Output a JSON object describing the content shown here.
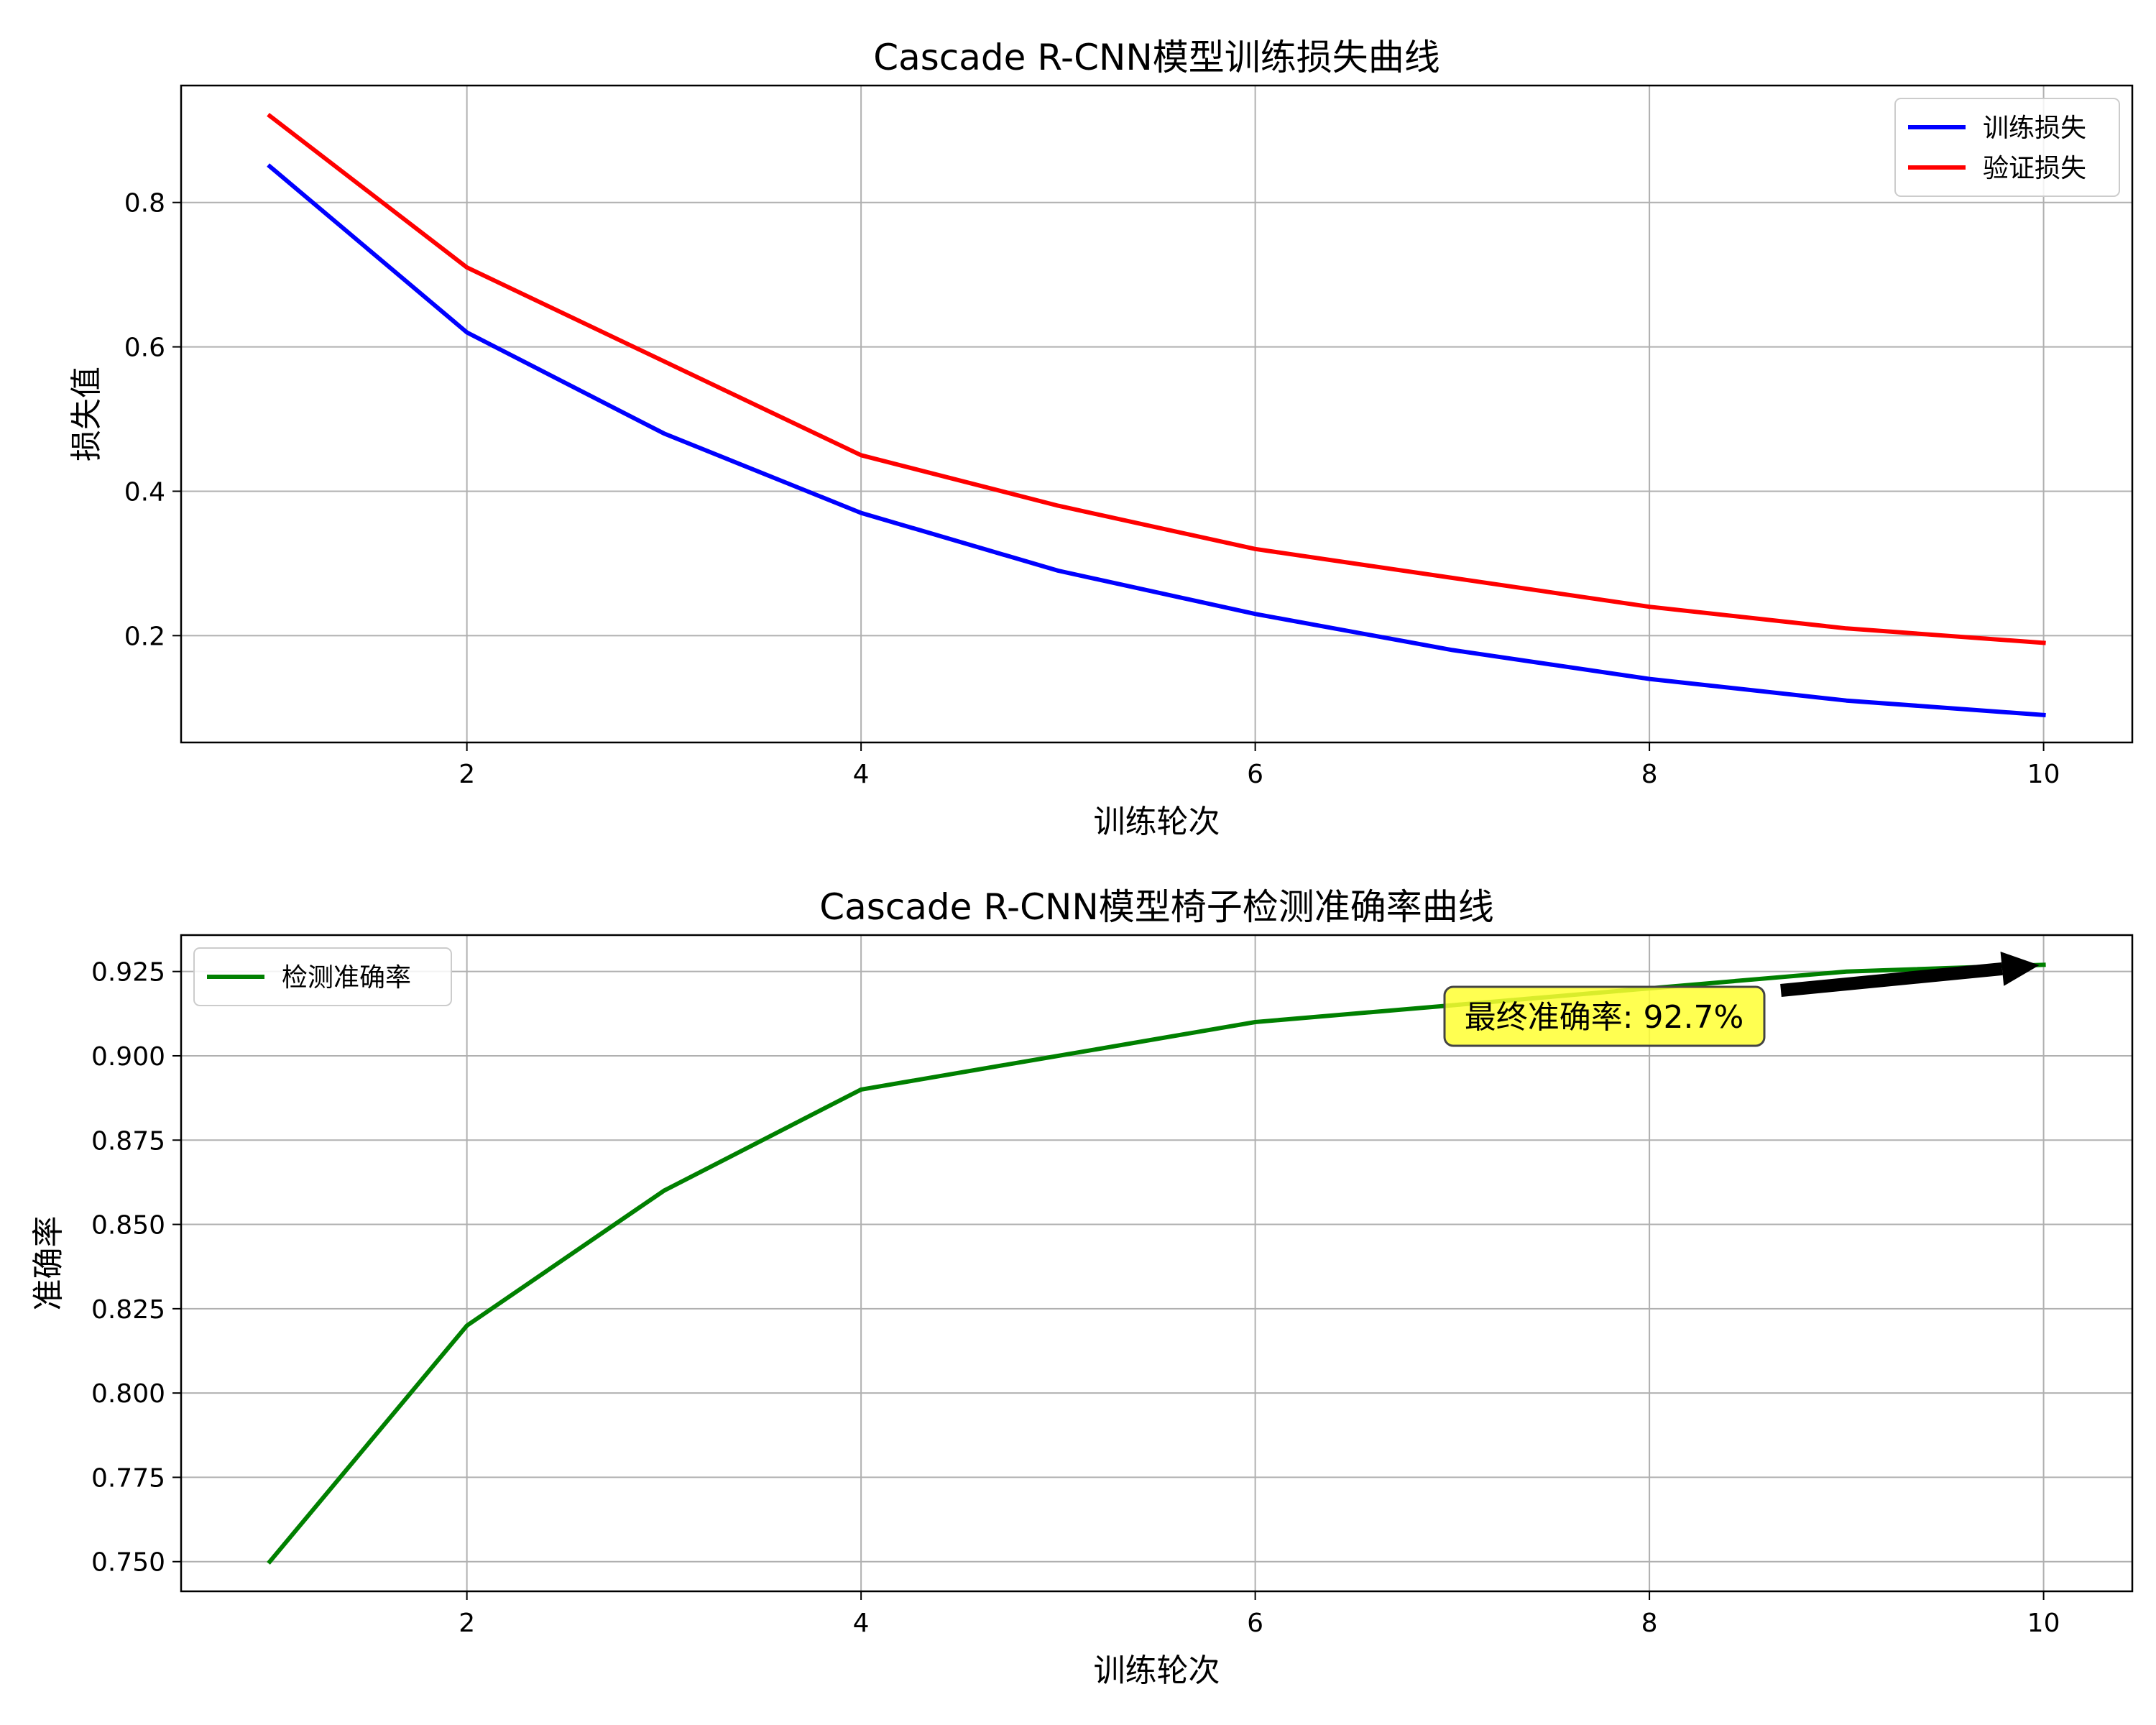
{
  "chart_data": [
    {
      "type": "line",
      "title": "Cascade R-CNN模型训练损失曲线",
      "xlabel": "训练轮次",
      "ylabel": "损失值",
      "x": [
        1,
        2,
        3,
        4,
        5,
        6,
        7,
        8,
        9,
        10
      ],
      "xlim": [
        0.55,
        10.45
      ],
      "ylim": [
        0.052,
        0.962
      ],
      "xticks": [
        2,
        4,
        6,
        8,
        10
      ],
      "yticks": [
        0.2,
        0.4,
        0.6,
        0.8
      ],
      "xtick_labels": [
        "2",
        "4",
        "6",
        "8",
        "10"
      ],
      "ytick_labels": [
        "0.2",
        "0.4",
        "0.6",
        "0.8"
      ],
      "grid": true,
      "legend": "top-right",
      "series": [
        {
          "name": "训练损失",
          "color": "#0000ff",
          "values": [
            0.85,
            0.62,
            0.48,
            0.37,
            0.29,
            0.23,
            0.18,
            0.14,
            0.11,
            0.09
          ]
        },
        {
          "name": "验证损失",
          "color": "#ff0000",
          "values": [
            0.92,
            0.71,
            0.58,
            0.45,
            0.38,
            0.32,
            0.28,
            0.24,
            0.21,
            0.19
          ]
        }
      ]
    },
    {
      "type": "line",
      "title": "Cascade R-CNN模型椅子检测准确率曲线",
      "xlabel": "训练轮次",
      "ylabel": "准确率",
      "x": [
        1,
        2,
        3,
        4,
        5,
        6,
        7,
        8,
        9,
        10
      ],
      "xlim": [
        0.55,
        10.45
      ],
      "ylim": [
        0.7412,
        0.9358
      ],
      "xticks": [
        2,
        4,
        6,
        8,
        10
      ],
      "yticks": [
        0.75,
        0.775,
        0.8,
        0.825,
        0.85,
        0.875,
        0.9,
        0.925
      ],
      "xtick_labels": [
        "2",
        "4",
        "6",
        "8",
        "10"
      ],
      "ytick_labels": [
        "0.750",
        "0.775",
        "0.800",
        "0.825",
        "0.850",
        "0.875",
        "0.900",
        "0.925"
      ],
      "grid": true,
      "legend": "top-left",
      "series": [
        {
          "name": "检测准确率",
          "color": "#008000",
          "values": [
            0.75,
            0.82,
            0.86,
            0.89,
            0.9,
            0.91,
            0.915,
            0.92,
            0.925,
            0.927
          ]
        }
      ],
      "annotation": {
        "text": "最终准确率: 92.7%",
        "x": 10,
        "y": 0.927,
        "box_color": "#ffff33",
        "arrow_color": "#000000"
      }
    }
  ]
}
